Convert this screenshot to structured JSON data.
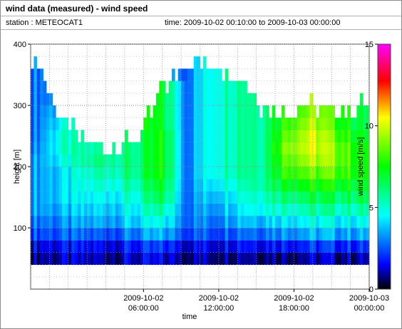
{
  "header": {
    "title": "wind data (measured) - wind speed",
    "station": "station : METEOCAT1",
    "time_range": "time: 2009-10-02 00:10:00 to 2009-10-03 00:00:00"
  },
  "chart_data": {
    "type": "heatmap",
    "title": "wind data (measured) - wind speed",
    "xlabel": "time",
    "ylabel": "height [m]",
    "colorbar_label": "wind speed [m/s]",
    "xlim_hours": [
      -3,
      24
    ],
    "ylim": [
      0,
      400
    ],
    "yticks": [
      100,
      200,
      300,
      400
    ],
    "xticks": [
      {
        "hour": 6,
        "line1": "2009-10-02",
        "line2": "06:00:00"
      },
      {
        "hour": 12,
        "line1": "2009-10-02",
        "line2": "12:00:00"
      },
      {
        "hour": 18,
        "line1": "2009-10-02",
        "line2": "18:00:00"
      },
      {
        "hour": 24,
        "line1": "2009-10-03",
        "line2": "00:00:00"
      }
    ],
    "colorbar_ticks": [
      0,
      5,
      10,
      15
    ],
    "colorbar_range": [
      0,
      15
    ],
    "colormap": [
      "#000000",
      "#0000ff",
      "#00ffff",
      "#00ff00",
      "#ffff00",
      "#ff0000",
      "#ff00ff"
    ],
    "grid": true,
    "height_bins": [
      40,
      60,
      80,
      100,
      120,
      140,
      160,
      180,
      200,
      220,
      240,
      260,
      280,
      300,
      320,
      340,
      360
    ],
    "time_hours": [
      -2.5,
      -0.5,
      2.5,
      5.5,
      7.5,
      9.5,
      11.5,
      13.5,
      15.5,
      17.5,
      19.5,
      21.5,
      23.5
    ],
    "profiles": [
      {
        "hour": -2.5,
        "top": 360,
        "speeds": [
          1.0,
          1.5,
          2.5,
          3,
          3.5,
          3.5,
          3.5,
          3.5,
          3.5,
          3.2,
          3,
          3,
          3,
          3,
          3,
          3,
          3
        ]
      },
      {
        "hour": -0.5,
        "top": 260,
        "speeds": [
          1.0,
          1.5,
          2.5,
          3,
          3.5,
          4,
          4,
          4,
          4.5,
          5,
          5,
          4.5,
          4,
          0,
          0,
          0,
          0
        ]
      },
      {
        "hour": 2.5,
        "top": 220,
        "speeds": [
          1.0,
          1.5,
          2.5,
          3.5,
          4,
          4.5,
          5,
          5.5,
          6,
          5.5,
          5,
          0,
          0,
          0,
          0,
          0,
          0
        ]
      },
      {
        "hour": 5.5,
        "top": 230,
        "speeds": [
          1.2,
          1.8,
          3,
          4,
          4.5,
          5,
          5.5,
          6,
          6,
          6,
          6,
          0,
          0,
          0,
          0,
          0,
          0
        ]
      },
      {
        "hour": 7.5,
        "top": 320,
        "speeds": [
          1.2,
          2,
          3.5,
          4.5,
          5.5,
          6.5,
          7,
          7.5,
          7.5,
          7.5,
          7.5,
          7,
          7,
          7,
          7,
          0,
          0
        ]
      },
      {
        "hour": 9.5,
        "top": 360,
        "speeds": [
          1.0,
          1.5,
          2.5,
          3,
          3,
          3,
          3,
          3,
          3,
          3,
          3,
          3,
          3,
          3,
          3,
          3,
          3
        ]
      },
      {
        "hour": 11.5,
        "top": 360,
        "speeds": [
          1.0,
          1.5,
          2.5,
          3,
          3.5,
          4,
          4.5,
          5,
          5,
          5,
          5,
          5,
          5,
          5,
          5,
          5,
          5
        ]
      },
      {
        "hour": 13.5,
        "top": 340,
        "speeds": [
          1.2,
          2,
          3,
          4,
          4.5,
          5,
          5.5,
          6,
          6,
          6,
          6,
          6,
          6,
          6,
          6,
          6,
          0
        ]
      },
      {
        "hour": 15.5,
        "top": 290,
        "speeds": [
          1.0,
          1.8,
          3,
          4,
          5,
          5.5,
          6,
          6,
          6,
          6,
          6,
          6,
          6,
          0,
          0,
          0,
          0
        ]
      },
      {
        "hour": 17.5,
        "top": 280,
        "speeds": [
          1.0,
          2,
          3.5,
          4.5,
          5.5,
          6.5,
          7.5,
          8.5,
          9,
          9.5,
          9,
          8.5,
          8,
          0,
          0,
          0,
          0
        ]
      },
      {
        "hour": 19.5,
        "top": 290,
        "speeds": [
          1.0,
          2,
          3.5,
          4.5,
          5.5,
          6.5,
          7.5,
          8.5,
          9.5,
          10,
          10,
          9.5,
          9,
          9,
          0,
          0,
          0
        ]
      },
      {
        "hour": 21.5,
        "top": 280,
        "speeds": [
          1.0,
          2,
          3.5,
          4.5,
          5.5,
          6.5,
          7.5,
          8.5,
          9,
          9,
          8.5,
          8,
          8,
          0,
          0,
          0,
          0
        ]
      },
      {
        "hour": 23.5,
        "top": 290,
        "speeds": [
          1.0,
          2,
          3.5,
          4.5,
          5.5,
          6.5,
          7,
          7.5,
          7.5,
          7.5,
          7,
          6.5,
          6.5,
          6,
          0,
          0,
          0
        ]
      }
    ]
  }
}
